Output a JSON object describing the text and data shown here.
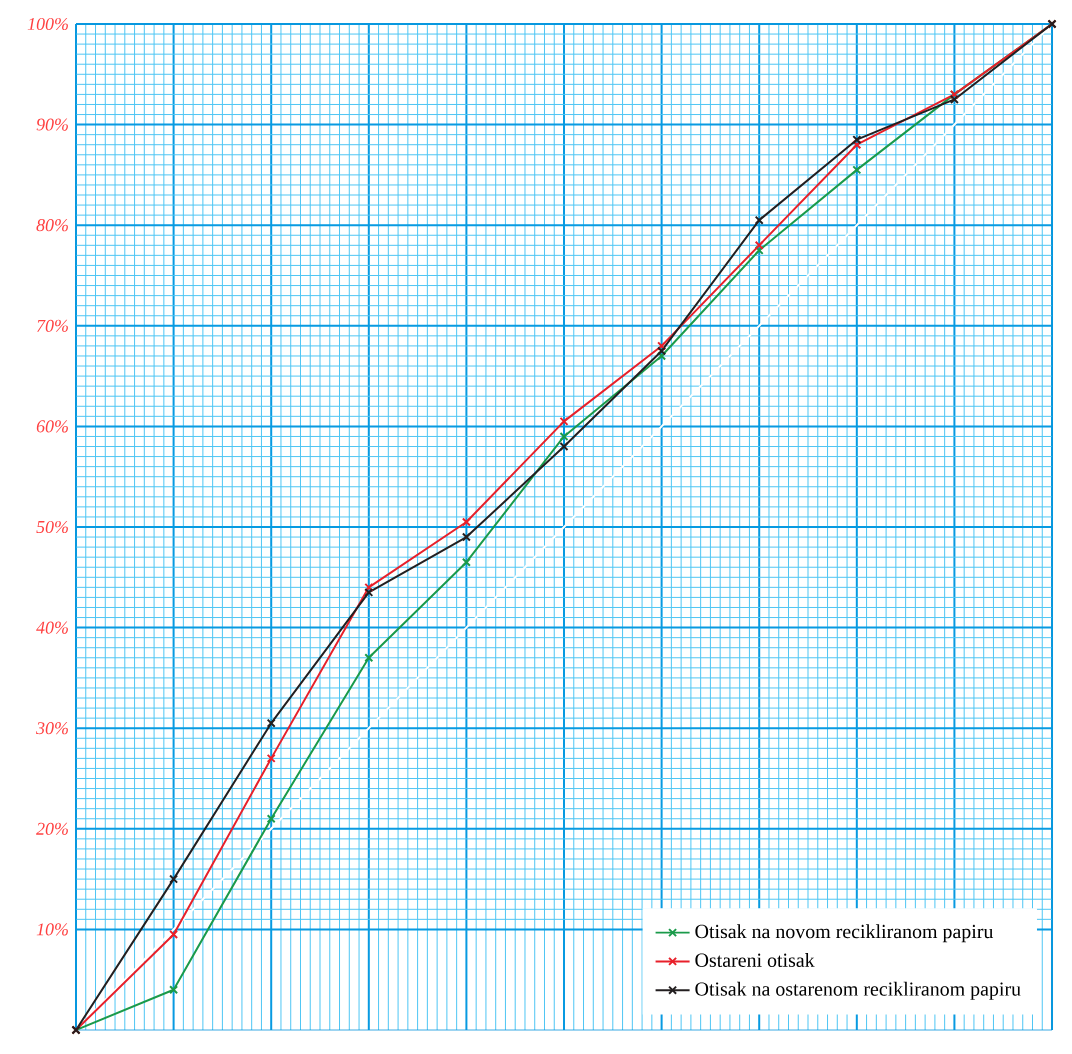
{
  "chart_data": {
    "type": "line",
    "categories": [
      null,
      null,
      null,
      null,
      null,
      null,
      null,
      null,
      null,
      null,
      null
    ],
    "series": [
      {
        "color": "#ffffff",
        "marker": "none",
        "values": [
          0,
          10,
          20,
          30,
          40,
          50,
          60,
          70,
          80,
          90,
          100
        ]
      },
      {
        "name": "Otisak na novom recikliranom papiru",
        "color": "#1a9a4a",
        "values": [
          0,
          4,
          21,
          37,
          46.5,
          59,
          67,
          77.5,
          85.5,
          93,
          100
        ]
      },
      {
        "name": "Ostareni otisak",
        "color": "#e8202a",
        "values": [
          0,
          9.5,
          27,
          44,
          50.5,
          60.5,
          68,
          78,
          88,
          93,
          100
        ]
      },
      {
        "name": "Otisak na ostarenom recikliranom papiru",
        "color": "#231f20",
        "values": [
          0,
          15,
          30.5,
          43.5,
          49,
          58,
          67.5,
          80.5,
          88.5,
          92.5,
          100
        ]
      }
    ],
    "ylim": [
      0,
      100
    ],
    "yticks": [
      {
        "value": 10,
        "label": "10%"
      },
      {
        "value": 20,
        "label": "20%"
      },
      {
        "value": 30,
        "label": "30%"
      },
      {
        "value": 40,
        "label": "40%"
      },
      {
        "value": 50,
        "label": "50%"
      },
      {
        "value": 60,
        "label": "60%"
      },
      {
        "value": 70,
        "label": "70%"
      },
      {
        "value": 80,
        "label": "80%"
      },
      {
        "value": 90,
        "label": "90%"
      },
      {
        "value": 100,
        "label": "100%"
      }
    ],
    "grid": true,
    "legend": "bottom right",
    "marker": "cross",
    "tick_labels": "y"
  }
}
